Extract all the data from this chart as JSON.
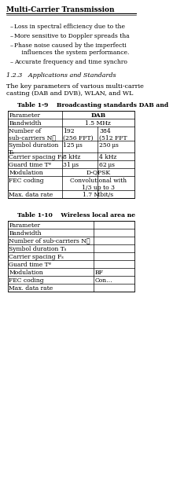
{
  "title": "Multi-Carrier Transmission",
  "bg_color": "#ffffff",
  "t1_title": "Table 1-9    Broadcasting standards DAB and",
  "t2_title": "Table 1-10    Wireless local area ne",
  "section": "1.2.3   Applications and Standards",
  "paragraph_line1": "The key parameters of various multi-carrie",
  "paragraph_line2": "casting (DAB and DVB), WLAN, and WL"
}
